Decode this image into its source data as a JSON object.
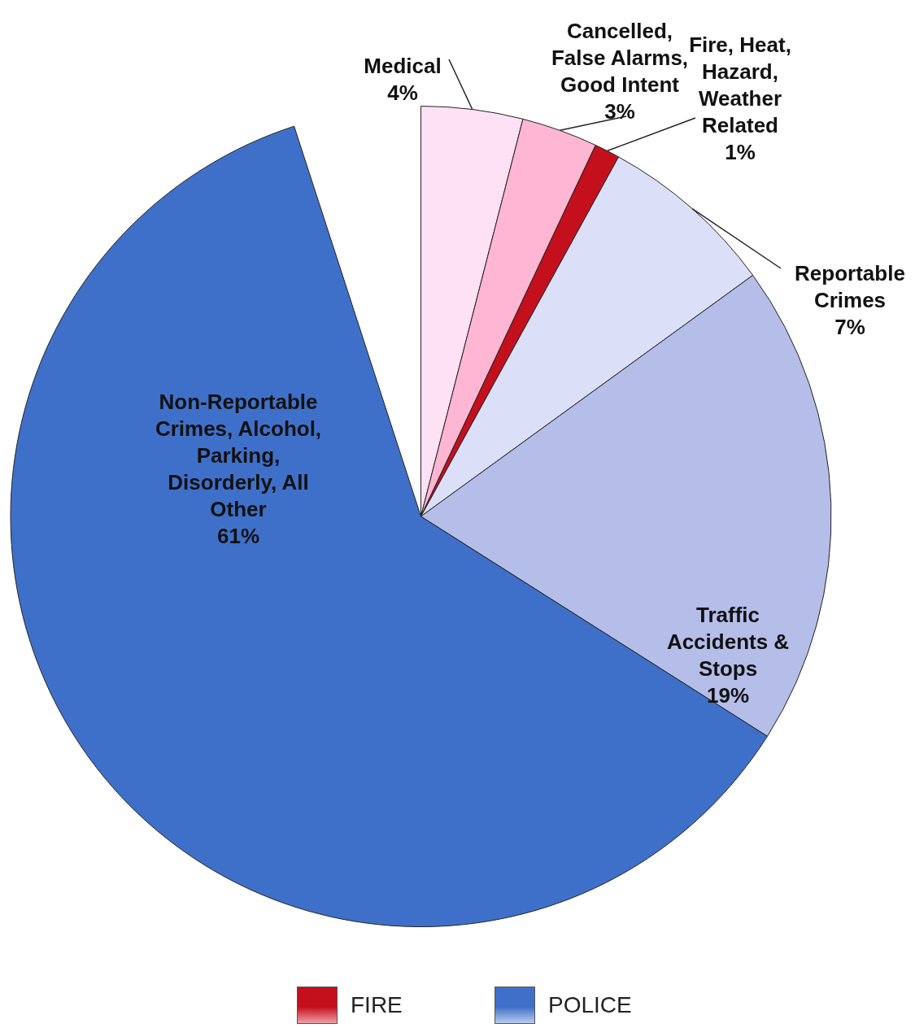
{
  "chart_data": {
    "type": "pie",
    "categories": [
      "Medical",
      "Cancelled, False Alarms, Good Intent",
      "Fire, Heat, Hazard, Weather Related",
      "Reportable Crimes",
      "Traffic Accidents & Stops",
      "Non-Reportable Crimes, Alcohol, Parking, Disorderly, All Other"
    ],
    "values": [
      4,
      3,
      1,
      7,
      19,
      61
    ],
    "value_labels": [
      "4%",
      "3%",
      "1%",
      "7%",
      "19%",
      "61%"
    ],
    "colors": [
      "#ffe1f6",
      "#ffb6d2",
      "#c4101c",
      "#dcdff8",
      "#b5bde9",
      "#3f70c9"
    ],
    "legend": false,
    "annotations": [
      "FIRE",
      "POLICE"
    ]
  }
}
